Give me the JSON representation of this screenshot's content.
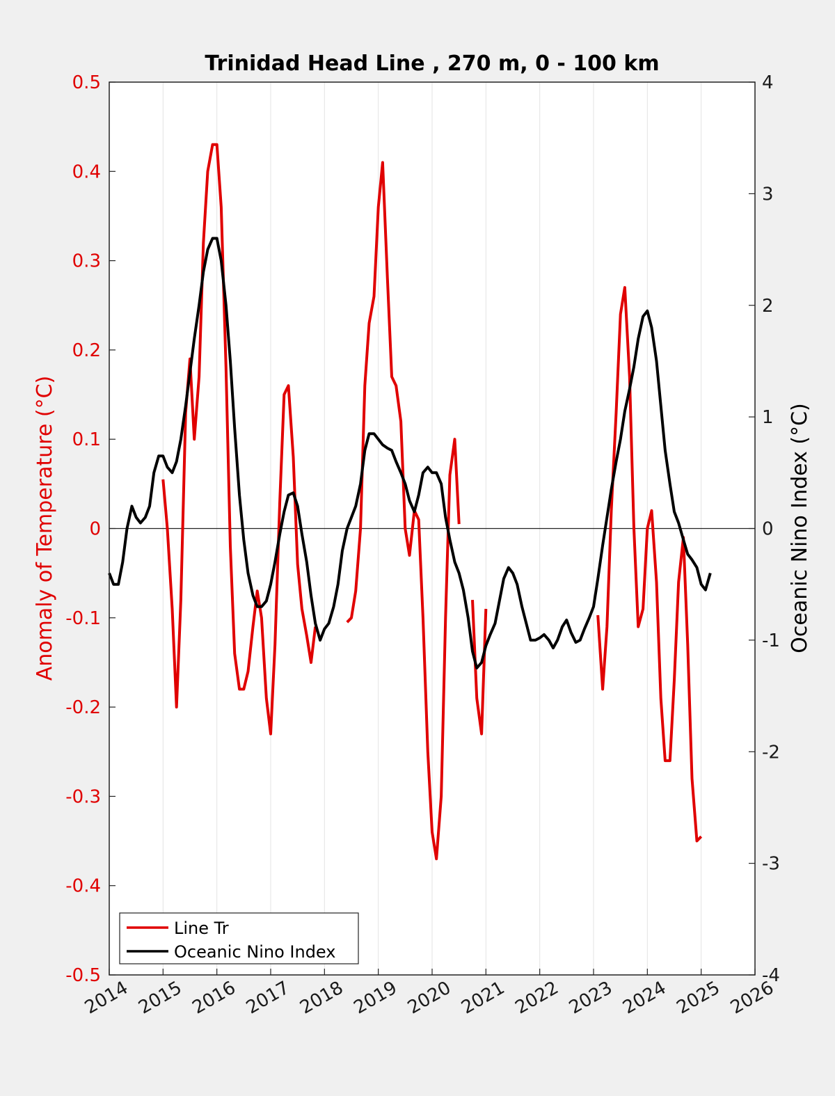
{
  "chart_data": {
    "type": "line",
    "title": "Trinidad Head Line , 270 m, 0 - 100 km",
    "xlim": [
      2014,
      2026
    ],
    "x_ticks": [
      "2014",
      "2015",
      "2016",
      "2017",
      "2018",
      "2019",
      "2020",
      "2021",
      "2022",
      "2023",
      "2024",
      "2025",
      "2026"
    ],
    "y_left": {
      "label": "Anomaly of Temperature (°C)",
      "lim": [
        -0.5,
        0.5
      ],
      "ticks": [
        "0.5",
        "0.4",
        "0.3",
        "0.2",
        "0.1",
        "0",
        "-0.1",
        "-0.2",
        "-0.3",
        "-0.4",
        "-0.5"
      ],
      "color": "#e00000"
    },
    "y_right": {
      "label": "Oceanic Nino Index (°C)",
      "lim": [
        -4,
        4
      ],
      "ticks": [
        "4",
        "3",
        "2",
        "1",
        "0",
        "-1",
        "-2",
        "-3",
        "-4"
      ],
      "color": "#000000"
    },
    "x_grid": true,
    "zero_line": true,
    "legend_position": "bottom-left",
    "series": [
      {
        "name": "Line Tr",
        "axis": "left",
        "color": "#e00000",
        "segments": [
          [
            [
              2015.0,
              0.055
            ],
            [
              2015.08,
              0.0
            ],
            [
              2015.17,
              -0.09
            ],
            [
              2015.25,
              -0.2
            ],
            [
              2015.33,
              -0.08
            ],
            [
              2015.42,
              0.13
            ],
            [
              2015.5,
              0.19
            ],
            [
              2015.58,
              0.1
            ],
            [
              2015.67,
              0.17
            ],
            [
              2015.75,
              0.32
            ],
            [
              2015.83,
              0.4
            ],
            [
              2015.92,
              0.43
            ],
            [
              2016.0,
              0.43
            ],
            [
              2016.08,
              0.36
            ],
            [
              2016.17,
              0.18
            ],
            [
              2016.25,
              -0.02
            ],
            [
              2016.33,
              -0.14
            ],
            [
              2016.42,
              -0.18
            ],
            [
              2016.5,
              -0.18
            ],
            [
              2016.58,
              -0.16
            ],
            [
              2016.67,
              -0.11
            ],
            [
              2016.75,
              -0.07
            ],
            [
              2016.83,
              -0.1
            ],
            [
              2016.92,
              -0.19
            ],
            [
              2017.0,
              -0.23
            ],
            [
              2017.08,
              -0.13
            ],
            [
              2017.17,
              0.03
            ],
            [
              2017.25,
              0.15
            ],
            [
              2017.33,
              0.16
            ],
            [
              2017.42,
              0.08
            ],
            [
              2017.5,
              -0.04
            ],
            [
              2017.58,
              -0.09
            ],
            [
              2017.67,
              -0.12
            ],
            [
              2017.75,
              -0.15
            ],
            [
              2017.83,
              -0.11
            ]
          ],
          [
            [
              2018.42,
              -0.105
            ],
            [
              2018.5,
              -0.1
            ],
            [
              2018.58,
              -0.07
            ],
            [
              2018.67,
              0.0
            ],
            [
              2018.75,
              0.16
            ],
            [
              2018.83,
              0.23
            ],
            [
              2018.92,
              0.26
            ],
            [
              2019.0,
              0.36
            ],
            [
              2019.08,
              0.41
            ],
            [
              2019.17,
              0.28
            ],
            [
              2019.25,
              0.17
            ],
            [
              2019.33,
              0.16
            ],
            [
              2019.42,
              0.12
            ],
            [
              2019.5,
              0.0
            ],
            [
              2019.58,
              -0.03
            ],
            [
              2019.67,
              0.02
            ],
            [
              2019.75,
              0.01
            ],
            [
              2019.83,
              -0.1
            ],
            [
              2019.92,
              -0.25
            ],
            [
              2020.0,
              -0.34
            ],
            [
              2020.08,
              -0.37
            ],
            [
              2020.17,
              -0.3
            ],
            [
              2020.25,
              -0.1
            ],
            [
              2020.33,
              0.06
            ],
            [
              2020.42,
              0.1
            ],
            [
              2020.5,
              0.005
            ]
          ],
          [
            [
              2020.75,
              -0.08
            ],
            [
              2020.83,
              -0.19
            ],
            [
              2020.92,
              -0.23
            ],
            [
              2021.0,
              -0.09
            ]
          ],
          [
            [
              2023.08,
              -0.097
            ],
            [
              2023.17,
              -0.18
            ],
            [
              2023.25,
              -0.11
            ],
            [
              2023.33,
              0.02
            ],
            [
              2023.42,
              0.13
            ],
            [
              2023.5,
              0.24
            ],
            [
              2023.58,
              0.27
            ],
            [
              2023.67,
              0.17
            ],
            [
              2023.75,
              0.0
            ],
            [
              2023.83,
              -0.11
            ],
            [
              2023.92,
              -0.09
            ],
            [
              2024.0,
              0.0
            ],
            [
              2024.08,
              0.02
            ],
            [
              2024.17,
              -0.06
            ],
            [
              2024.25,
              -0.19
            ],
            [
              2024.33,
              -0.26
            ],
            [
              2024.42,
              -0.26
            ],
            [
              2024.5,
              -0.17
            ],
            [
              2024.58,
              -0.06
            ],
            [
              2024.67,
              -0.01
            ],
            [
              2024.75,
              -0.13
            ],
            [
              2024.83,
              -0.28
            ],
            [
              2024.92,
              -0.35
            ],
            [
              2025.0,
              -0.345
            ]
          ]
        ]
      },
      {
        "name": "Oceanic Nino Index",
        "axis": "right",
        "color": "#000000",
        "segments": [
          [
            [
              2014.0,
              -0.4
            ],
            [
              2014.08,
              -0.5
            ],
            [
              2014.17,
              -0.5
            ],
            [
              2014.25,
              -0.3
            ],
            [
              2014.33,
              0.0
            ],
            [
              2014.42,
              0.2
            ],
            [
              2014.5,
              0.1
            ],
            [
              2014.58,
              0.05
            ],
            [
              2014.67,
              0.1
            ],
            [
              2014.75,
              0.2
            ],
            [
              2014.83,
              0.5
            ],
            [
              2014.92,
              0.65
            ],
            [
              2015.0,
              0.65
            ],
            [
              2015.08,
              0.55
            ],
            [
              2015.17,
              0.5
            ],
            [
              2015.25,
              0.6
            ],
            [
              2015.33,
              0.8
            ],
            [
              2015.42,
              1.1
            ],
            [
              2015.5,
              1.4
            ],
            [
              2015.58,
              1.7
            ],
            [
              2015.67,
              2.0
            ],
            [
              2015.75,
              2.3
            ],
            [
              2015.83,
              2.5
            ],
            [
              2015.92,
              2.6
            ],
            [
              2016.0,
              2.6
            ],
            [
              2016.08,
              2.4
            ],
            [
              2016.17,
              2.0
            ],
            [
              2016.25,
              1.5
            ],
            [
              2016.33,
              0.9
            ],
            [
              2016.42,
              0.3
            ],
            [
              2016.5,
              -0.1
            ],
            [
              2016.58,
              -0.4
            ],
            [
              2016.67,
              -0.6
            ],
            [
              2016.75,
              -0.7
            ],
            [
              2016.83,
              -0.7
            ],
            [
              2016.92,
              -0.65
            ],
            [
              2017.0,
              -0.5
            ],
            [
              2017.08,
              -0.3
            ],
            [
              2017.17,
              -0.05
            ],
            [
              2017.25,
              0.15
            ],
            [
              2017.33,
              0.3
            ],
            [
              2017.42,
              0.32
            ],
            [
              2017.5,
              0.2
            ],
            [
              2017.58,
              -0.05
            ],
            [
              2017.67,
              -0.3
            ],
            [
              2017.75,
              -0.6
            ],
            [
              2017.83,
              -0.85
            ],
            [
              2017.92,
              -1.0
            ],
            [
              2018.0,
              -0.9
            ],
            [
              2018.08,
              -0.85
            ],
            [
              2018.17,
              -0.7
            ],
            [
              2018.25,
              -0.5
            ],
            [
              2018.33,
              -0.2
            ],
            [
              2018.42,
              0.0
            ],
            [
              2018.5,
              0.1
            ],
            [
              2018.58,
              0.2
            ],
            [
              2018.67,
              0.4
            ],
            [
              2018.75,
              0.7
            ],
            [
              2018.83,
              0.85
            ],
            [
              2018.92,
              0.85
            ],
            [
              2019.0,
              0.8
            ],
            [
              2019.08,
              0.75
            ],
            [
              2019.17,
              0.72
            ],
            [
              2019.25,
              0.7
            ],
            [
              2019.33,
              0.6
            ],
            [
              2019.42,
              0.5
            ],
            [
              2019.5,
              0.4
            ],
            [
              2019.58,
              0.25
            ],
            [
              2019.67,
              0.15
            ],
            [
              2019.75,
              0.3
            ],
            [
              2019.83,
              0.5
            ],
            [
              2019.92,
              0.55
            ],
            [
              2020.0,
              0.5
            ],
            [
              2020.08,
              0.5
            ],
            [
              2020.17,
              0.4
            ],
            [
              2020.25,
              0.1
            ],
            [
              2020.33,
              -0.1
            ],
            [
              2020.42,
              -0.3
            ],
            [
              2020.5,
              -0.4
            ],
            [
              2020.58,
              -0.55
            ],
            [
              2020.67,
              -0.8
            ],
            [
              2020.75,
              -1.1
            ],
            [
              2020.83,
              -1.25
            ],
            [
              2020.92,
              -1.2
            ],
            [
              2021.0,
              -1.05
            ],
            [
              2021.08,
              -0.95
            ],
            [
              2021.17,
              -0.85
            ],
            [
              2021.25,
              -0.65
            ],
            [
              2021.33,
              -0.45
            ],
            [
              2021.42,
              -0.35
            ],
            [
              2021.5,
              -0.4
            ],
            [
              2021.58,
              -0.5
            ],
            [
              2021.67,
              -0.7
            ],
            [
              2021.75,
              -0.85
            ],
            [
              2021.83,
              -1.0
            ],
            [
              2021.92,
              -1.0
            ],
            [
              2022.0,
              -0.98
            ],
            [
              2022.08,
              -0.95
            ],
            [
              2022.17,
              -1.0
            ],
            [
              2022.25,
              -1.07
            ],
            [
              2022.33,
              -1.0
            ],
            [
              2022.42,
              -0.88
            ],
            [
              2022.5,
              -0.82
            ],
            [
              2022.58,
              -0.93
            ],
            [
              2022.67,
              -1.02
            ],
            [
              2022.75,
              -1.0
            ],
            [
              2022.83,
              -0.9
            ],
            [
              2022.92,
              -0.8
            ],
            [
              2023.0,
              -0.7
            ],
            [
              2023.08,
              -0.45
            ],
            [
              2023.17,
              -0.15
            ],
            [
              2023.25,
              0.1
            ],
            [
              2023.33,
              0.35
            ],
            [
              2023.42,
              0.6
            ],
            [
              2023.5,
              0.8
            ],
            [
              2023.58,
              1.05
            ],
            [
              2023.67,
              1.25
            ],
            [
              2023.75,
              1.45
            ],
            [
              2023.83,
              1.7
            ],
            [
              2023.92,
              1.9
            ],
            [
              2024.0,
              1.95
            ],
            [
              2024.08,
              1.8
            ],
            [
              2024.17,
              1.5
            ],
            [
              2024.25,
              1.1
            ],
            [
              2024.33,
              0.7
            ],
            [
              2024.42,
              0.4
            ],
            [
              2024.5,
              0.15
            ],
            [
              2024.58,
              0.05
            ],
            [
              2024.67,
              -0.1
            ],
            [
              2024.75,
              -0.23
            ],
            [
              2024.83,
              -0.28
            ],
            [
              2024.92,
              -0.35
            ],
            [
              2025.0,
              -0.5
            ],
            [
              2025.08,
              -0.55
            ],
            [
              2025.17,
              -0.4
            ]
          ]
        ]
      }
    ]
  }
}
